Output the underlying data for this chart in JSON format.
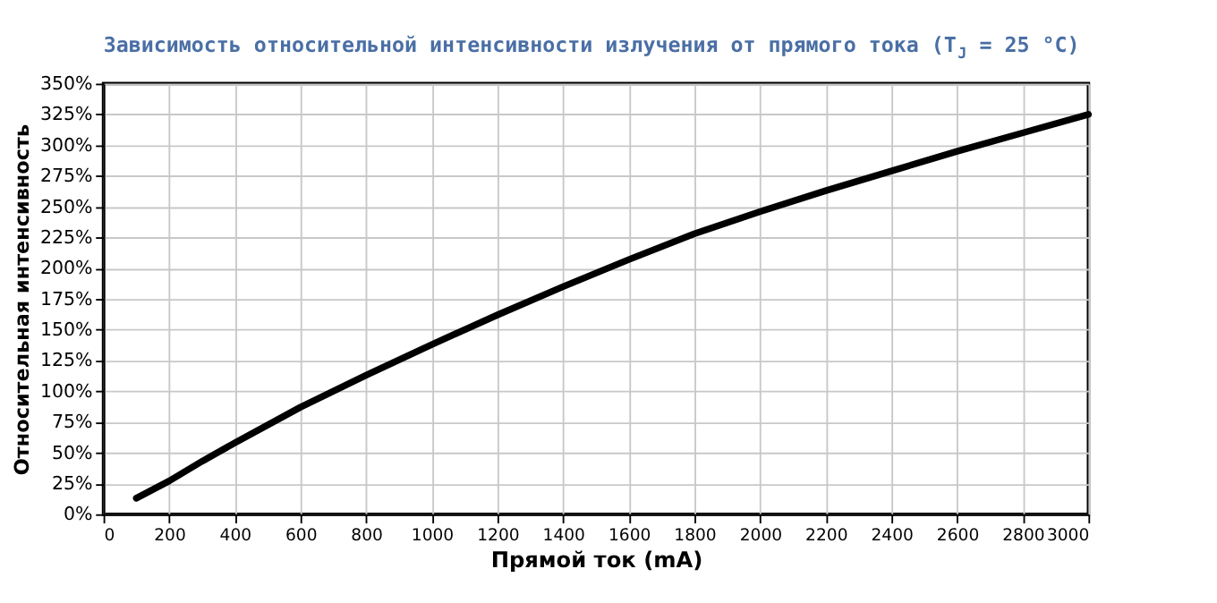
{
  "chart_data": {
    "type": "line",
    "title": "Зависимость относительной интенсивности излучения от прямого тока (T$_{J}$ = 25 °C)",
    "xlabel": "Прямой ток (mA)",
    "ylabel": "Относительная интенсивность",
    "x": [
      100,
      200,
      300,
      400,
      600,
      800,
      1000,
      1200,
      1400,
      1600,
      1800,
      2000,
      2200,
      2400,
      2600,
      2800,
      3000
    ],
    "series": [
      {
        "color": "#000000",
        "values": [
          13,
          27,
          43,
          58,
          87,
          113,
          138,
          162,
          185,
          207,
          228,
          246,
          263,
          279,
          295,
          310,
          325
        ]
      }
    ],
    "xlim": [
      0,
      3000
    ],
    "xticks": [
      0,
      200,
      400,
      600,
      800,
      1000,
      1200,
      1400,
      1600,
      1800,
      2000,
      2200,
      2400,
      2600,
      2800,
      3000
    ],
    "ylim": [
      0,
      350
    ],
    "yticks": [
      {
        "value": 0,
        "label": "0%"
      },
      {
        "value": 25,
        "label": "25%"
      },
      {
        "value": 50,
        "label": "50%"
      },
      {
        "value": 75,
        "label": "75%"
      },
      {
        "value": 100,
        "label": "100%"
      },
      {
        "value": 125,
        "label": "125%"
      },
      {
        "value": 150,
        "label": "150%"
      },
      {
        "value": 175,
        "label": "175%"
      },
      {
        "value": 200,
        "label": "200%"
      },
      {
        "value": 225,
        "label": "225%"
      },
      {
        "value": 250,
        "label": "250%"
      },
      {
        "value": 275,
        "label": "275%"
      },
      {
        "value": 300,
        "label": "300%"
      },
      {
        "value": 325,
        "label": "325%"
      },
      {
        "value": 350,
        "label": "350%"
      }
    ],
    "grid": true,
    "marker": "none",
    "line_style": "solid"
  }
}
